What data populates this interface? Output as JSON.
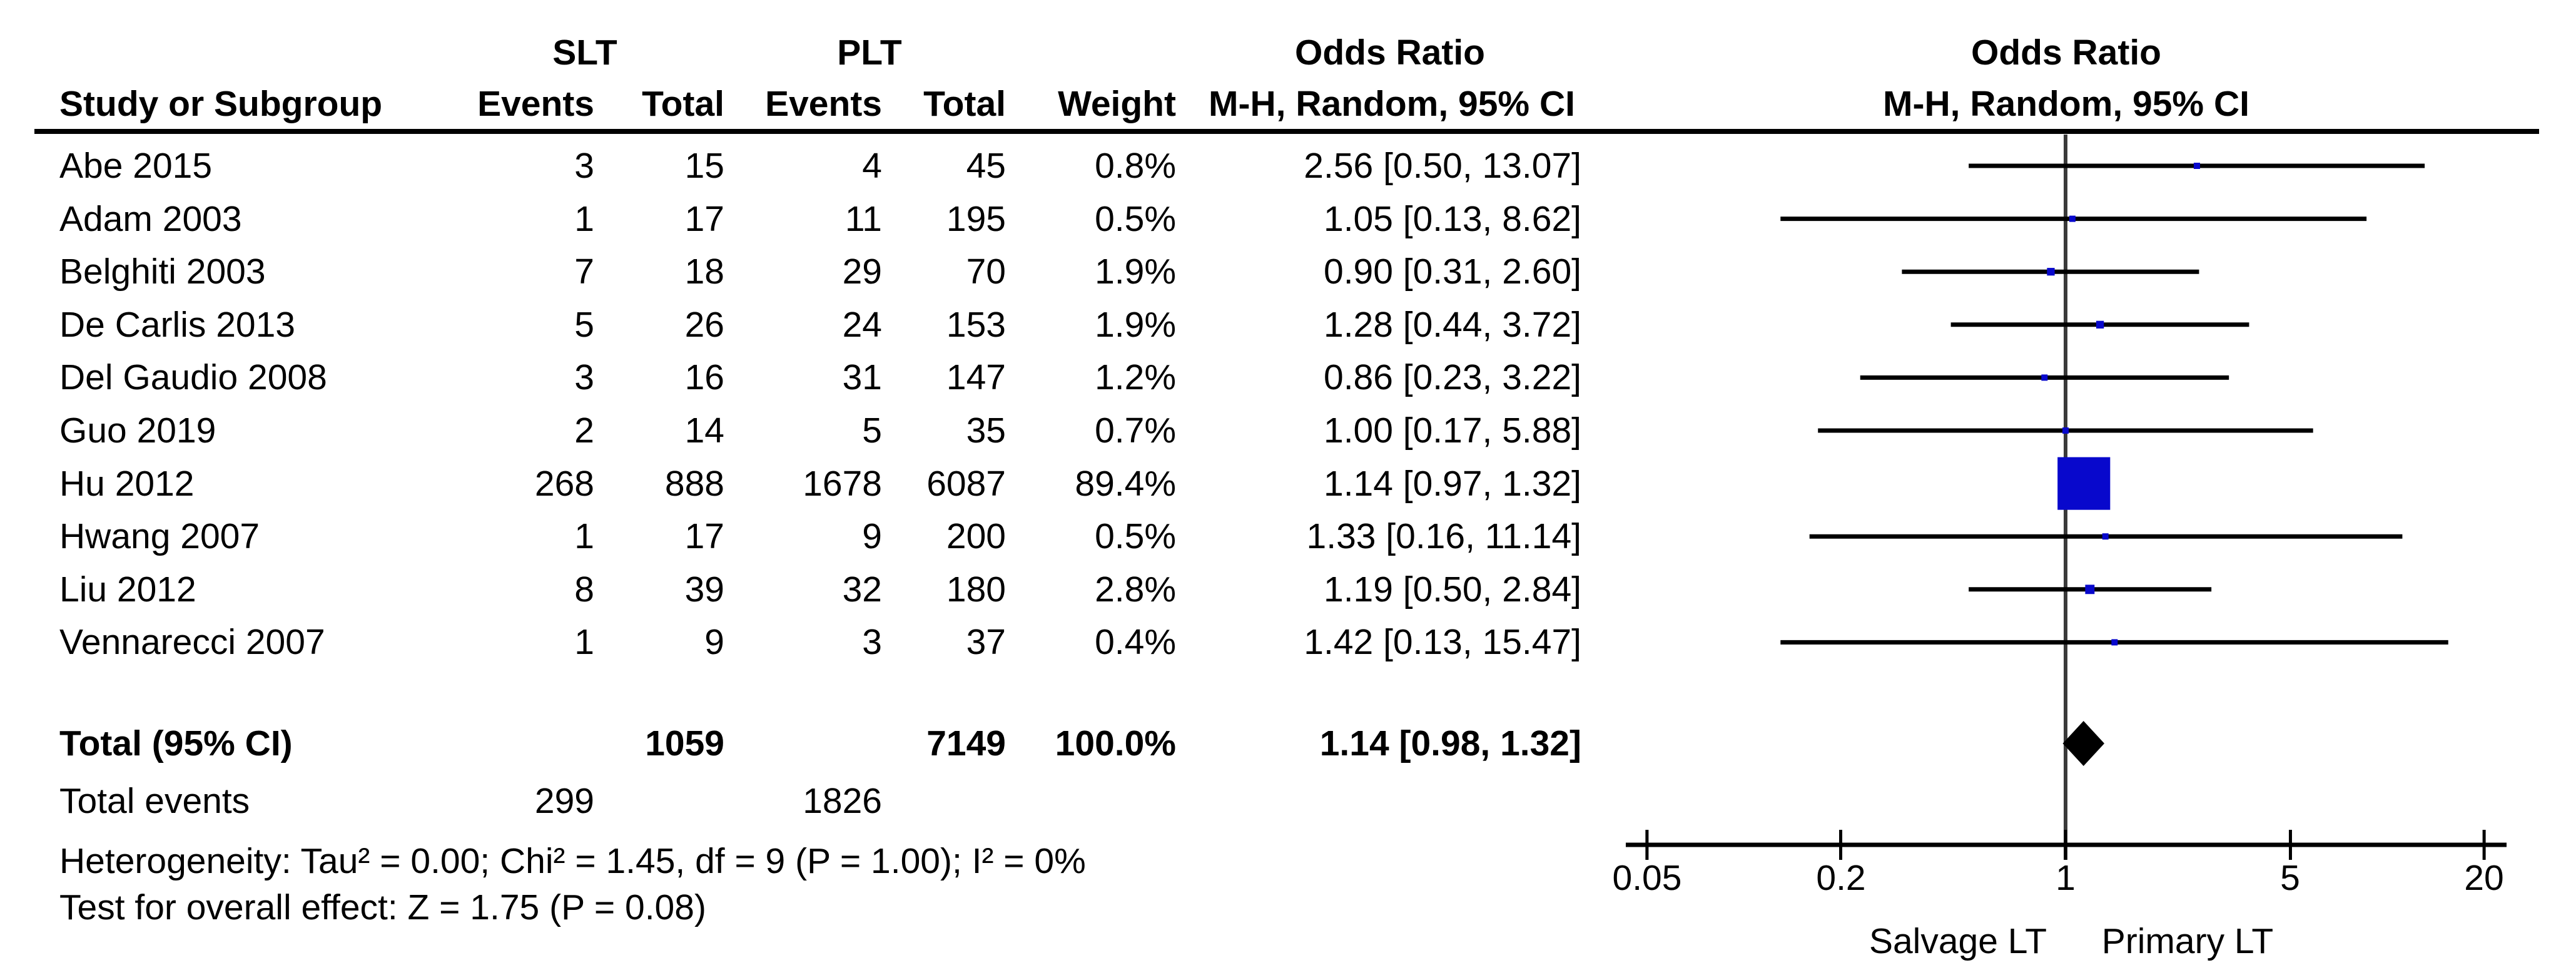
{
  "header": {
    "group1": "SLT",
    "group2": "PLT",
    "study_col": "Study or Subgroup",
    "events_col": "Events",
    "total_col": "Total",
    "weight_col": "Weight",
    "or_title": "Odds Ratio",
    "or_subtitle": "M-H, Random, 95% CI",
    "plot_title": "Odds Ratio",
    "plot_subtitle": "M-H, Random, 95% CI"
  },
  "chart_data": {
    "type": "forest",
    "effect_measure": "Odds Ratio",
    "method": "M-H, Random, 95% CI",
    "x_scale": "log",
    "x_tick_labels": [
      "0.05",
      "0.2",
      "1",
      "5",
      "20"
    ],
    "x_tick_values": [
      0.05,
      0.2,
      1,
      5,
      20
    ],
    "x_range": [
      0.05,
      20
    ],
    "null_value": 1,
    "axis_label_left": "Salvage LT",
    "axis_label_right": "Primary LT",
    "marker_color": "#0808cc",
    "line_color": "#000000",
    "null_line_color": "#3a3a3a",
    "studies": [
      {
        "study": "Abe 2015",
        "slt_events": 3,
        "slt_total": 15,
        "plt_events": 4,
        "plt_total": 45,
        "weight": "0.8%",
        "weight_pct": 0.8,
        "or": 2.56,
        "ci_low": 0.5,
        "ci_high": 13.07,
        "or_text": "2.56 [0.50, 13.07]"
      },
      {
        "study": "Adam 2003",
        "slt_events": 1,
        "slt_total": 17,
        "plt_events": 11,
        "plt_total": 195,
        "weight": "0.5%",
        "weight_pct": 0.5,
        "or": 1.05,
        "ci_low": 0.13,
        "ci_high": 8.62,
        "or_text": "1.05 [0.13, 8.62]"
      },
      {
        "study": "Belghiti 2003",
        "slt_events": 7,
        "slt_total": 18,
        "plt_events": 29,
        "plt_total": 70,
        "weight": "1.9%",
        "weight_pct": 1.9,
        "or": 0.9,
        "ci_low": 0.31,
        "ci_high": 2.6,
        "or_text": "0.90 [0.31, 2.60]"
      },
      {
        "study": "De Carlis 2013",
        "slt_events": 5,
        "slt_total": 26,
        "plt_events": 24,
        "plt_total": 153,
        "weight": "1.9%",
        "weight_pct": 1.9,
        "or": 1.28,
        "ci_low": 0.44,
        "ci_high": 3.72,
        "or_text": "1.28 [0.44, 3.72]"
      },
      {
        "study": "Del Gaudio 2008",
        "slt_events": 3,
        "slt_total": 16,
        "plt_events": 31,
        "plt_total": 147,
        "weight": "1.2%",
        "weight_pct": 1.2,
        "or": 0.86,
        "ci_low": 0.23,
        "ci_high": 3.22,
        "or_text": "0.86 [0.23, 3.22]"
      },
      {
        "study": "Guo 2019",
        "slt_events": 2,
        "slt_total": 14,
        "plt_events": 5,
        "plt_total": 35,
        "weight": "0.7%",
        "weight_pct": 0.7,
        "or": 1.0,
        "ci_low": 0.17,
        "ci_high": 5.88,
        "or_text": "1.00 [0.17, 5.88]"
      },
      {
        "study": "Hu 2012",
        "slt_events": 268,
        "slt_total": 888,
        "plt_events": 1678,
        "plt_total": 6087,
        "weight": "89.4%",
        "weight_pct": 89.4,
        "or": 1.14,
        "ci_low": 0.97,
        "ci_high": 1.32,
        "or_text": "1.14 [0.97, 1.32]"
      },
      {
        "study": "Hwang 2007",
        "slt_events": 1,
        "slt_total": 17,
        "plt_events": 9,
        "plt_total": 200,
        "weight": "0.5%",
        "weight_pct": 0.5,
        "or": 1.33,
        "ci_low": 0.16,
        "ci_high": 11.14,
        "or_text": "1.33 [0.16, 11.14]"
      },
      {
        "study": "Liu 2012",
        "slt_events": 8,
        "slt_total": 39,
        "plt_events": 32,
        "plt_total": 180,
        "weight": "2.8%",
        "weight_pct": 2.8,
        "or": 1.19,
        "ci_low": 0.5,
        "ci_high": 2.84,
        "or_text": "1.19 [0.50, 2.84]"
      },
      {
        "study": "Vennarecci 2007",
        "slt_events": 1,
        "slt_total": 9,
        "plt_events": 3,
        "plt_total": 37,
        "weight": "0.4%",
        "weight_pct": 0.4,
        "or": 1.42,
        "ci_low": 0.13,
        "ci_high": 15.47,
        "or_text": "1.42 [0.13, 15.47]"
      }
    ],
    "total": {
      "label": "Total (95% CI)",
      "slt_total": "1059",
      "plt_total": "7149",
      "weight": "100.0%",
      "or": 1.14,
      "ci_low": 0.98,
      "ci_high": 1.32,
      "or_text": "1.14 [0.98, 1.32]"
    },
    "total_events": {
      "label": "Total events",
      "slt": "299",
      "plt": "1826"
    },
    "heterogeneity": "Heterogeneity: Tau² = 0.00; Chi² = 1.45, df = 9 (P = 1.00); I² = 0%",
    "overall_effect_test": "Test for overall effect: Z = 1.75 (P = 0.08)"
  }
}
